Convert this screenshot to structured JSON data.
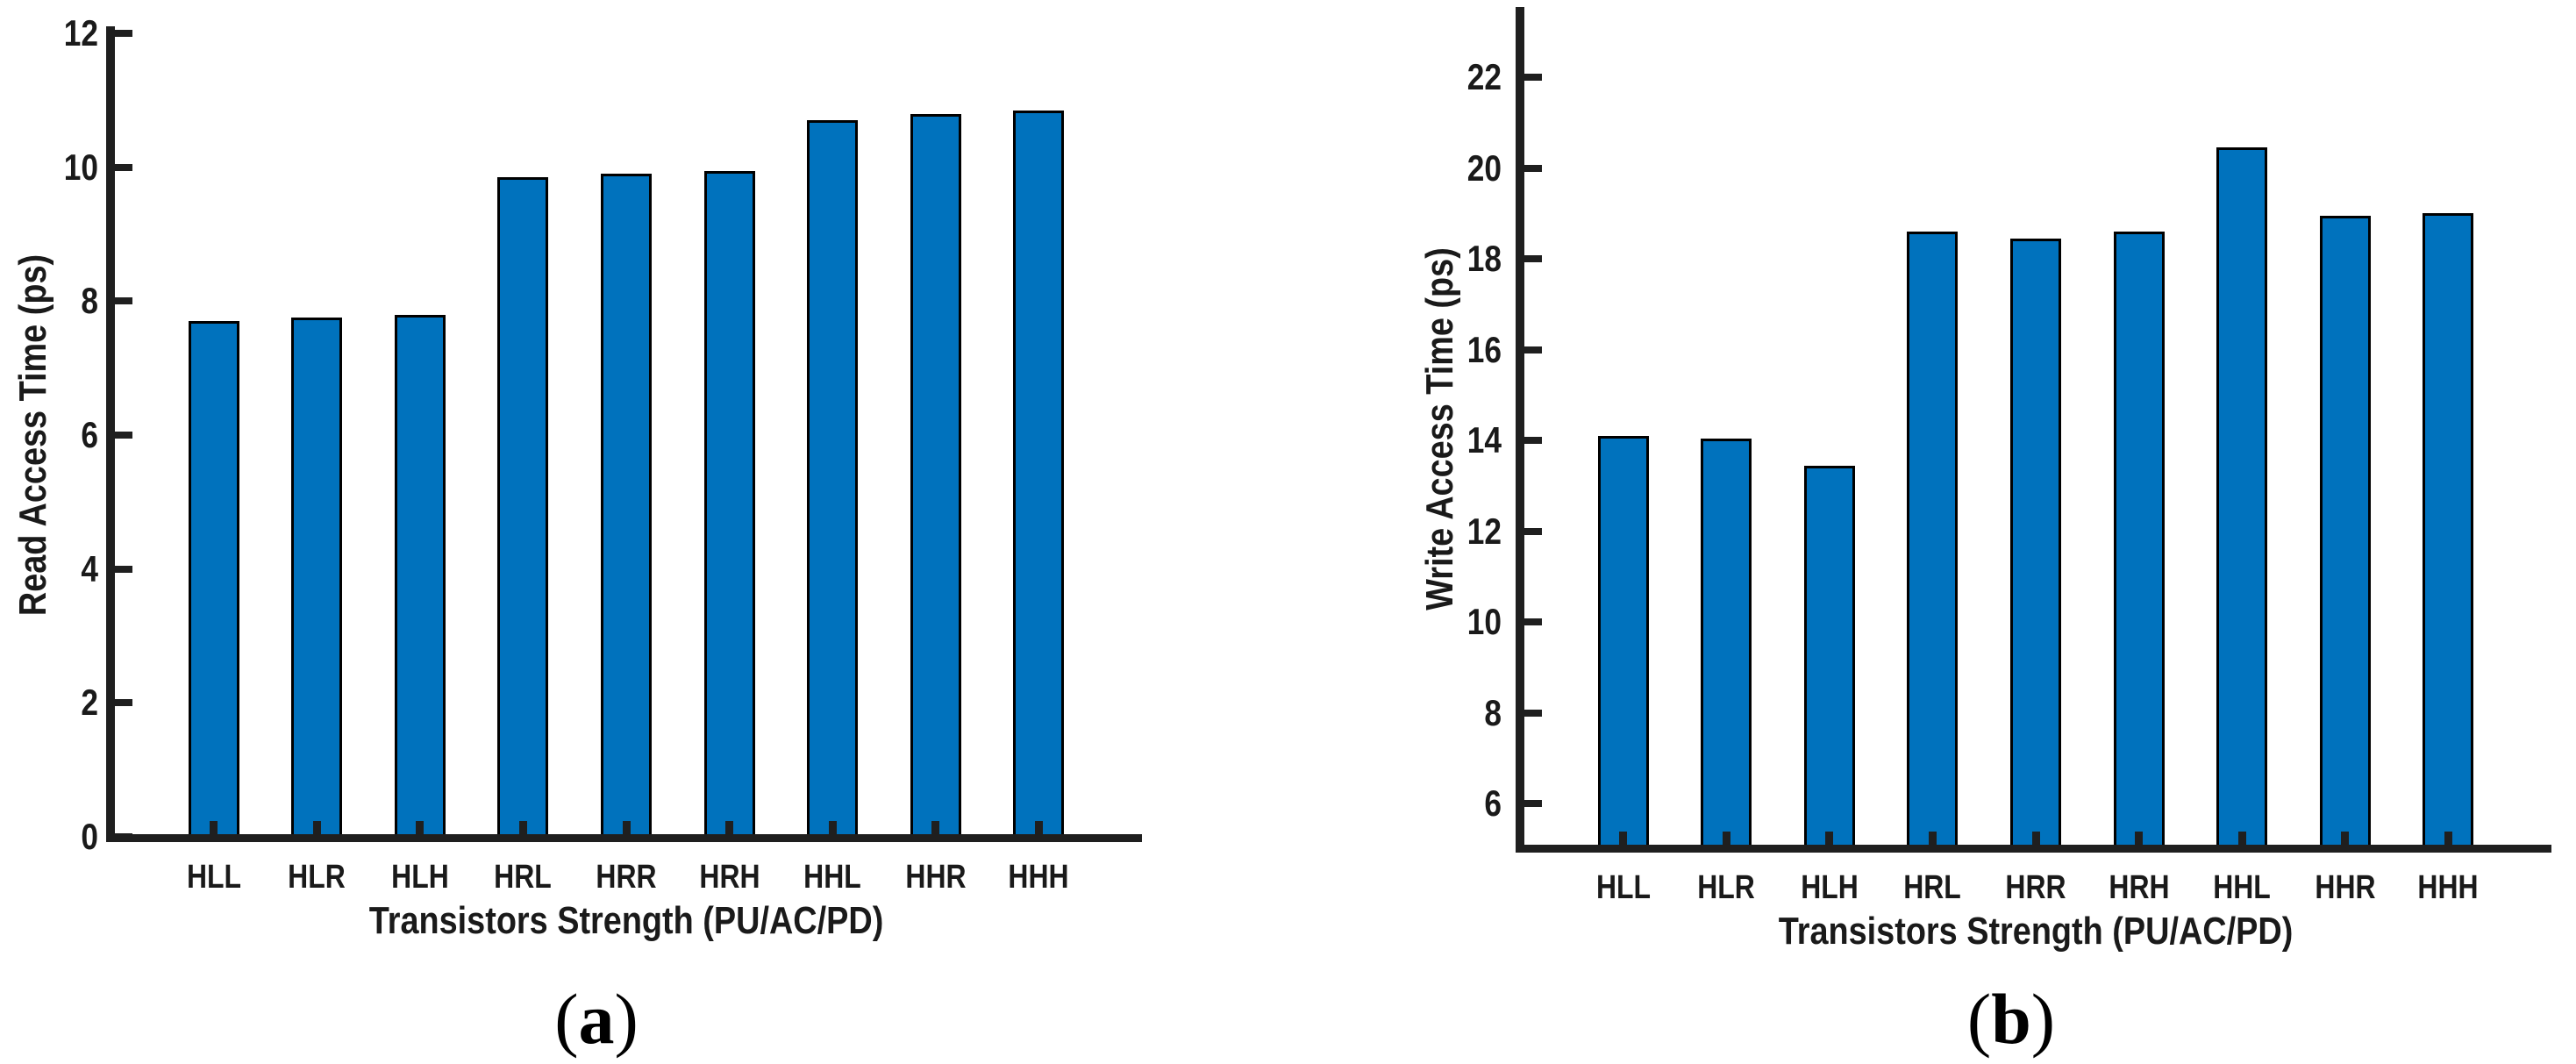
{
  "chart_data": [
    {
      "type": "bar",
      "panel_id": "a",
      "title": "",
      "xlabel": "Transistors Strength (PU/AC/PD)",
      "ylabel": "Read Access Time (ps)",
      "categories": [
        "HLL",
        "HLR",
        "HLH",
        "HRL",
        "HRR",
        "HRH",
        "HHL",
        "HHR",
        "HHH"
      ],
      "values": [
        7.7,
        7.75,
        7.8,
        9.85,
        9.9,
        9.95,
        10.7,
        10.8,
        10.85
      ],
      "ylim": [
        0,
        12
      ],
      "yticks": [
        0,
        2,
        4,
        6,
        8,
        10,
        12
      ],
      "grid": false,
      "legend": "none"
    },
    {
      "type": "bar",
      "panel_id": "b",
      "title": "",
      "xlabel": "Transistors Strength (PU/AC/PD)",
      "ylabel": "Write Access Time (ps)",
      "categories": [
        "HLL",
        "HLR",
        "HLH",
        "HRL",
        "HRR",
        "HRH",
        "HHL",
        "HHR",
        "HHH"
      ],
      "values": [
        14.1,
        14.05,
        13.45,
        18.6,
        18.45,
        18.6,
        20.45,
        18.95,
        19.0
      ],
      "ylim": [
        5,
        23.5
      ],
      "yticks": [
        6,
        8,
        10,
        12,
        14,
        16,
        18,
        20,
        22
      ],
      "grid": false,
      "legend": "none"
    }
  ],
  "captions": {
    "a": {
      "open": "(",
      "letter": "a",
      "close": ")"
    },
    "b": {
      "open": "(",
      "letter": "b",
      "close": ")"
    }
  },
  "colors": {
    "bar_fill": "#0072BD",
    "bar_edge": "#000000",
    "axis_ink": "#1f1f1f",
    "text_ink": "#1a1a1a",
    "background": "#ffffff"
  }
}
